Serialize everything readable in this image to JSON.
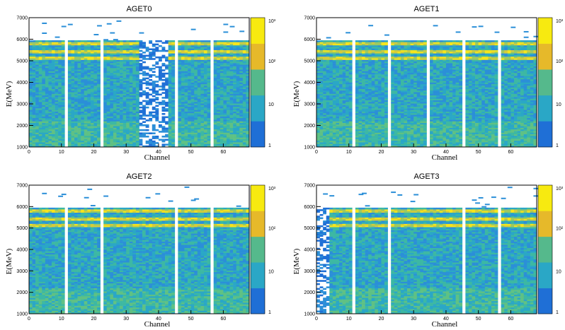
{
  "colors": {
    "palette": [
      "#1f6fd6",
      "#2b8fd8",
      "#2aa7c6",
      "#3db8a3",
      "#5fc184",
      "#9bc862",
      "#d4cc3a",
      "#f5e51c"
    ],
    "colorbar_bands": [
      "#1f6fd6",
      "#2aa7c6",
      "#55b98c",
      "#e6b92a",
      "#f7ea10"
    ],
    "gap": "#ffffff",
    "frame": "#000000"
  },
  "chart_data": [
    {
      "type": "heatmap",
      "title": "AGET0",
      "xlabel": "Channel",
      "ylabel": "E(MeV)",
      "xlim": [
        0,
        68
      ],
      "ylim": [
        1000,
        7000
      ],
      "xticks": [
        "0",
        "10",
        "20",
        "30",
        "40",
        "50",
        "60"
      ],
      "yticks": [
        "1000",
        "2000",
        "3000",
        "4000",
        "5000",
        "6000",
        "7000"
      ],
      "colorbar": {
        "scale": "log",
        "labels": [
          "1",
          "10",
          "10²",
          "10³"
        ]
      },
      "band_energies": [
        5100,
        5450,
        5800
      ],
      "empty_channels": [
        11,
        22,
        45,
        56
      ],
      "sparse_channels": [
        34,
        35,
        36,
        37,
        38,
        39,
        40,
        41,
        42
      ]
    },
    {
      "type": "heatmap",
      "title": "AGET1",
      "xlabel": "Channel",
      "ylabel": "E(MeV)",
      "xlim": [
        0,
        68
      ],
      "ylim": [
        1000,
        7000
      ],
      "xticks": [
        "0",
        "10",
        "20",
        "30",
        "40",
        "50",
        "60"
      ],
      "yticks": [
        "1000",
        "2000",
        "3000",
        "4000",
        "5000",
        "6000",
        "7000"
      ],
      "colorbar": {
        "scale": "log",
        "labels": [
          "1",
          "10",
          "10²",
          "10³"
        ]
      },
      "band_energies": [
        5100,
        5450,
        5800
      ],
      "empty_channels": [
        11,
        22,
        34,
        45,
        56
      ],
      "sparse_channels": []
    },
    {
      "type": "heatmap",
      "title": "AGET2",
      "xlabel": "Channel",
      "ylabel": "E(MeV)",
      "xlim": [
        0,
        68
      ],
      "ylim": [
        1000,
        7000
      ],
      "xticks": [
        "0",
        "10",
        "20",
        "30",
        "40",
        "50",
        "60"
      ],
      "yticks": [
        "1000",
        "2000",
        "3000",
        "4000",
        "5000",
        "6000",
        "7000"
      ],
      "colorbar": {
        "scale": "log",
        "labels": [
          "1",
          "10",
          "10²",
          "10³"
        ]
      },
      "band_energies": [
        5100,
        5450,
        5800
      ],
      "empty_channels": [
        11,
        22,
        45,
        56
      ],
      "sparse_channels": []
    },
    {
      "type": "heatmap",
      "title": "AGET3",
      "xlabel": "Channel",
      "ylabel": "E(MeV)",
      "xlim": [
        0,
        68
      ],
      "ylim": [
        1000,
        7000
      ],
      "xticks": [
        "0",
        "10",
        "20",
        "30",
        "40",
        "50",
        "60"
      ],
      "yticks": [
        "1000",
        "2000",
        "3000",
        "4000",
        "5000",
        "6000",
        "7000"
      ],
      "colorbar": {
        "scale": "log",
        "labels": [
          "1",
          "10",
          "10²",
          "10³"
        ]
      },
      "band_energies": [
        5100,
        5450,
        5800
      ],
      "empty_channels": [
        11,
        22,
        45,
        56
      ],
      "sparse_channels": [
        0,
        1,
        2,
        3
      ]
    }
  ]
}
